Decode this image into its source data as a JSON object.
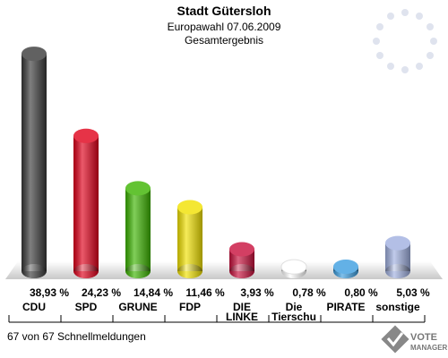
{
  "chart_data": {
    "type": "bar",
    "title": "Stadt Gütersloh",
    "subtitle": "Europawahl 07.06.2009",
    "subtitle2": "Gesamtergebnis",
    "categories": [
      "CDU",
      "SPD",
      "GRÜNE",
      "FDP",
      "DIE LINKE",
      "Die Tierschu",
      "PIRATE",
      "sonstige"
    ],
    "values": [
      38.93,
      24.23,
      14.84,
      11.46,
      3.93,
      0.78,
      0.8,
      5.03
    ],
    "value_labels": [
      "38,93 %",
      "24,23 %",
      "14,84 %",
      "11,46 %",
      "3,93 %",
      "0,78 %",
      "0,80 %",
      "5,03 %"
    ],
    "colors": [
      "#3a3a3a",
      "#e0001a",
      "#3cb400",
      "#f2e200",
      "#c8103c",
      "#ffffff",
      "#3c9ee0",
      "#a0b0e0"
    ],
    "footer": "67 von 67 Schnellmeldungen",
    "logo": [
      "VOTE",
      "MANAGER"
    ]
  }
}
